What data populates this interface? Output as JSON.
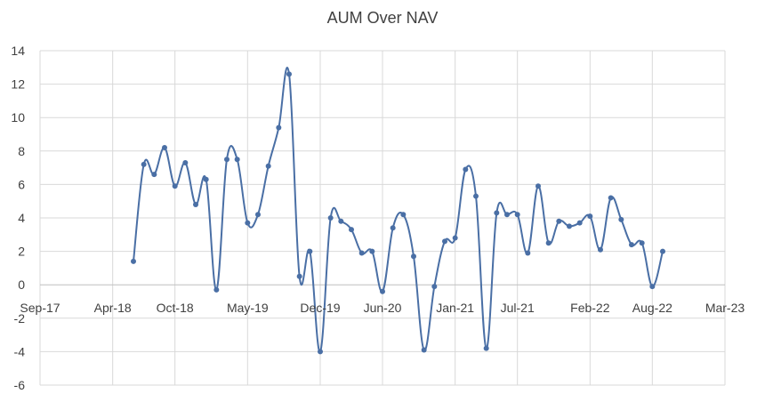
{
  "chart_data": {
    "type": "line",
    "title": "AUM Over NAV",
    "xlabel": "",
    "ylabel": "",
    "x_axis": {
      "type": "date",
      "range": [
        "2017-09",
        "2023-03"
      ],
      "tick_dates": [
        "2017-09",
        "2018-04",
        "2018-10",
        "2019-05",
        "2019-12",
        "2020-06",
        "2021-01",
        "2021-07",
        "2022-02",
        "2022-08",
        "2023-03"
      ],
      "tick_labels": [
        "Sep-17",
        "Apr-18",
        "Oct-18",
        "May-19",
        "Dec-19",
        "Jun-20",
        "Jan-21",
        "Jul-21",
        "Feb-22",
        "Aug-22",
        "Mar-23"
      ]
    },
    "y_axis": {
      "ylim": [
        -6,
        14
      ],
      "ticks": [
        -6,
        -4,
        -2,
        0,
        2,
        4,
        6,
        8,
        10,
        12,
        14
      ]
    },
    "grid": true,
    "legend": "none",
    "line_color": "#4a6fa5",
    "grid_color": "#d9d9d9",
    "series": [
      {
        "x": [
          "2018-06",
          "2018-07",
          "2018-08",
          "2018-09",
          "2018-10",
          "2018-11",
          "2018-12",
          "2019-01",
          "2019-02",
          "2019-03",
          "2019-04",
          "2019-05",
          "2019-06",
          "2019-07",
          "2019-08",
          "2019-09",
          "2019-10",
          "2019-11",
          "2019-12",
          "2020-01",
          "2020-02",
          "2020-03",
          "2020-04",
          "2020-05",
          "2020-06",
          "2020-07",
          "2020-08",
          "2020-09",
          "2020-10",
          "2020-11",
          "2020-12",
          "2021-01",
          "2021-02",
          "2021-03",
          "2021-04",
          "2021-05",
          "2021-06",
          "2021-07",
          "2021-08",
          "2021-09",
          "2021-10",
          "2021-11",
          "2021-12",
          "2022-01",
          "2022-02",
          "2022-03",
          "2022-04",
          "2022-05",
          "2022-06",
          "2022-07",
          "2022-08",
          "2022-09"
        ],
        "y": [
          1.4,
          7.2,
          6.6,
          8.2,
          5.9,
          7.3,
          4.8,
          6.3,
          -0.3,
          7.5,
          7.5,
          3.7,
          4.2,
          7.1,
          9.4,
          12.6,
          0.5,
          2.0,
          -4.0,
          4.0,
          3.8,
          3.3,
          1.9,
          2.0,
          -0.4,
          3.4,
          4.2,
          1.7,
          -3.9,
          -0.1,
          2.6,
          2.8,
          6.9,
          5.3,
          -3.8,
          4.3,
          4.2,
          4.2,
          1.9,
          5.9,
          2.5,
          3.8,
          3.5,
          3.7,
          4.1,
          2.1,
          5.2,
          3.9,
          2.4,
          2.5,
          -0.1,
          2.0
        ]
      }
    ]
  }
}
